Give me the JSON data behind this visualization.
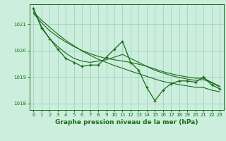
{
  "title": "Graphe pression niveau de la mer (hPa)",
  "bg_color": "#cceedd",
  "line_color": "#1a6b1a",
  "x_values": [
    0,
    1,
    2,
    3,
    4,
    5,
    6,
    7,
    8,
    9,
    10,
    11,
    12,
    13,
    14,
    15,
    16,
    17,
    18,
    19,
    20,
    21,
    22,
    23
  ],
  "main_line": [
    1021.6,
    1020.85,
    1020.45,
    1020.05,
    1019.7,
    1019.55,
    1019.4,
    1019.45,
    1019.45,
    1019.75,
    1020.05,
    1020.35,
    1019.55,
    1019.25,
    1018.6,
    1018.1,
    1018.5,
    1018.75,
    1018.85,
    1018.85,
    1018.8,
    1019.0,
    1018.7,
    1018.55
  ],
  "smooth_line1": [
    1021.55,
    1020.9,
    1020.45,
    1020.15,
    1019.9,
    1019.7,
    1019.6,
    1019.55,
    1019.6,
    1019.65,
    1019.75,
    1019.85,
    1019.7,
    1019.55,
    1019.4,
    1019.25,
    1019.15,
    1019.05,
    1018.98,
    1018.92,
    1018.87,
    1018.9,
    1018.78,
    1018.62
  ],
  "smooth_line2": [
    1021.4,
    1021.05,
    1020.75,
    1020.52,
    1020.32,
    1020.15,
    1020.0,
    1019.88,
    1019.78,
    1019.7,
    1019.65,
    1019.6,
    1019.55,
    1019.48,
    1019.4,
    1019.3,
    1019.2,
    1019.12,
    1019.05,
    1019.0,
    1018.95,
    1018.95,
    1018.8,
    1018.65
  ],
  "trend_line": [
    1021.45,
    1021.15,
    1020.88,
    1020.62,
    1020.38,
    1020.18,
    1019.98,
    1019.82,
    1019.67,
    1019.55,
    1019.43,
    1019.33,
    1019.22,
    1019.12,
    1019.02,
    1018.92,
    1018.83,
    1018.77,
    1018.71,
    1018.66,
    1018.61,
    1018.6,
    1018.5,
    1018.44
  ],
  "ylim": [
    1017.75,
    1021.75
  ],
  "yticks": [
    1018,
    1019,
    1020,
    1021
  ],
  "xlim": [
    -0.5,
    23.5
  ],
  "xticks": [
    0,
    1,
    2,
    3,
    4,
    5,
    6,
    7,
    8,
    9,
    10,
    11,
    12,
    13,
    14,
    15,
    16,
    17,
    18,
    19,
    20,
    21,
    22,
    23
  ],
  "grid_color": "#99ccbb",
  "title_fontsize": 6.5,
  "tick_fontsize": 5.0
}
